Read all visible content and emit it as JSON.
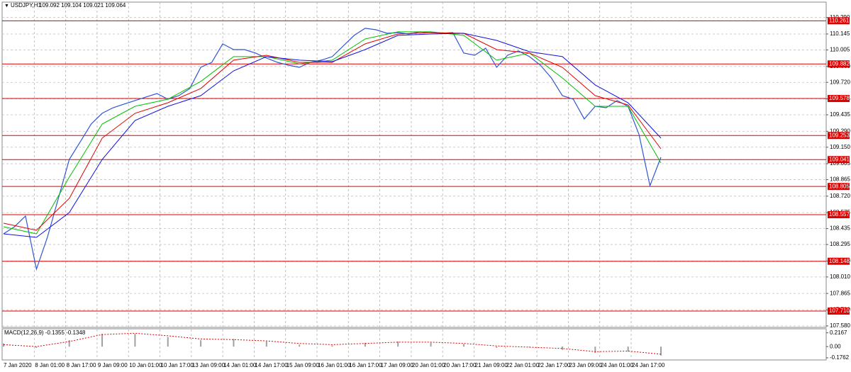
{
  "chart_data": [
    {
      "type": "line",
      "title": "USDJPY,H1",
      "subtitle": "109.092 109.104 109.021 109.064",
      "xlabels": [
        "7 Jan 2020",
        "8 Jan 01:00",
        "8 Jan 17:00",
        "9 Jan 09:00",
        "10 Jan 01:00",
        "10 Jan 17:00",
        "13 Jan 09:00",
        "14 Jan 01:00",
        "14 Jan 17:00",
        "15 Jan 09:00",
        "16 Jan 01:00",
        "16 Jan 17:00",
        "17 Jan 09:00",
        "20 Jan 01:00",
        "20 Jan 17:00",
        "21 Jan 09:00",
        "22 Jan 01:00",
        "22 Jan 17:00",
        "23 Jan 09:00",
        "24 Jan 01:00",
        "24 Jan 17:00"
      ],
      "ylim": [
        107.567,
        110.425
      ],
      "yticks": [
        {
          "value": 110.29,
          "label": "110.290"
        },
        110.145,
        110.005,
        {
          "value": 109.86,
          "label": "109.860"
        },
        {
          "value": 109.72,
          "label": "109.720"
        },
        109.575,
        109.435,
        {
          "value": 109.29,
          "label": "109.290"
        },
        {
          "value": 109.15,
          "label": "109.150"
        },
        109.005,
        108.865,
        {
          "value": 108.72,
          "label": "108.720"
        },
        108.575,
        108.435,
        108.295,
        {
          "value": 108.15,
          "label": "108.150"
        },
        {
          "value": 108.01,
          "label": "108.010"
        },
        107.865,
        {
          "value": 107.72,
          "label": "107.720"
        },
        {
          "value": 107.58,
          "label": "107.580"
        }
      ],
      "grid": true,
      "levels": [
        110.261,
        109.882,
        109.578,
        109.253,
        109.041,
        108.805,
        108.557,
        108.148,
        {
          "value": 107.71,
          "label": "107.710"
        }
      ],
      "level_color": "#e00000",
      "series": [
        {
          "color": "#2f55d4",
          "values": [
            108.389,
            108.451,
            108.545,
            108.078,
            108.358,
            108.7,
            109.043,
            109.198,
            109.354,
            109.448,
            109.497,
            109.529,
            109.56,
            109.591,
            109.622,
            109.572,
            109.603,
            109.666,
            109.852,
            109.896,
            110.058,
            110.008,
            110.008,
            109.977,
            109.933,
            109.896,
            109.871,
            109.852,
            109.896,
            109.915,
            109.946,
            110.039,
            110.133,
            110.195,
            110.182,
            110.151,
            110.157,
            110.145,
            110.164,
            110.157,
            110.151,
            110.157,
            109.977,
            109.958,
            110.02,
            109.852,
            109.958,
            109.996,
            109.946,
            109.871,
            109.759,
            109.603,
            109.572,
            109.398,
            109.51,
            109.497,
            109.56,
            109.51,
            109.261,
            108.812,
            109.062
          ]
        },
        {
          "color": "#00c000",
          "values": [
            108.451,
            108.389,
            108.887,
            109.354,
            109.51,
            109.572,
            109.728,
            109.946,
            109.946,
            109.883,
            109.915,
            110.101,
            110.164,
            110.164,
            110.133,
            109.915,
            109.977,
            109.759,
            109.51,
            109.51,
            109.012
          ]
        },
        {
          "color": "#e00000",
          "values": [
            108.482,
            108.42,
            108.7,
            109.23,
            109.448,
            109.541,
            109.666,
            109.915,
            109.958,
            109.896,
            109.896,
            110.058,
            110.145,
            110.157,
            110.151,
            110.008,
            109.977,
            109.852,
            109.603,
            109.522,
            109.136
          ]
        },
        {
          "color": "#1010e0",
          "values": [
            108.389,
            108.358,
            108.576,
            109.043,
            109.385,
            109.51,
            109.603,
            109.821,
            109.946,
            109.915,
            109.902,
            110.008,
            110.133,
            110.145,
            110.151,
            110.089,
            109.989,
            109.946,
            109.697,
            109.541,
            109.23
          ]
        }
      ]
    },
    {
      "type": "macd",
      "title": "MACD(12,26,9) -0.1355 -0.1348",
      "ylim": [
        -0.21,
        0.28
      ],
      "yticks": [
        0.2167,
        {
          "value": 0,
          "label": "0.00"
        },
        -0.1762
      ],
      "histogram": {
        "color": "#a0a0a0",
        "values": [
          0.05,
          -0.02,
          0.1,
          0.2,
          0.2,
          0.15,
          0.1,
          0.12,
          0.08,
          0.03,
          0.02,
          0.06,
          0.08,
          0.06,
          0.04,
          -0.02,
          -0.01,
          -0.05,
          -0.1,
          -0.08,
          -0.14
        ]
      },
      "signal": {
        "color": "#e00000",
        "values": [
          0.03,
          0.0,
          0.08,
          0.19,
          0.21,
          0.17,
          0.12,
          0.11,
          0.09,
          0.05,
          0.03,
          0.05,
          0.07,
          0.07,
          0.05,
          0.01,
          -0.01,
          -0.03,
          -0.08,
          -0.07,
          -0.12
        ]
      }
    }
  ]
}
